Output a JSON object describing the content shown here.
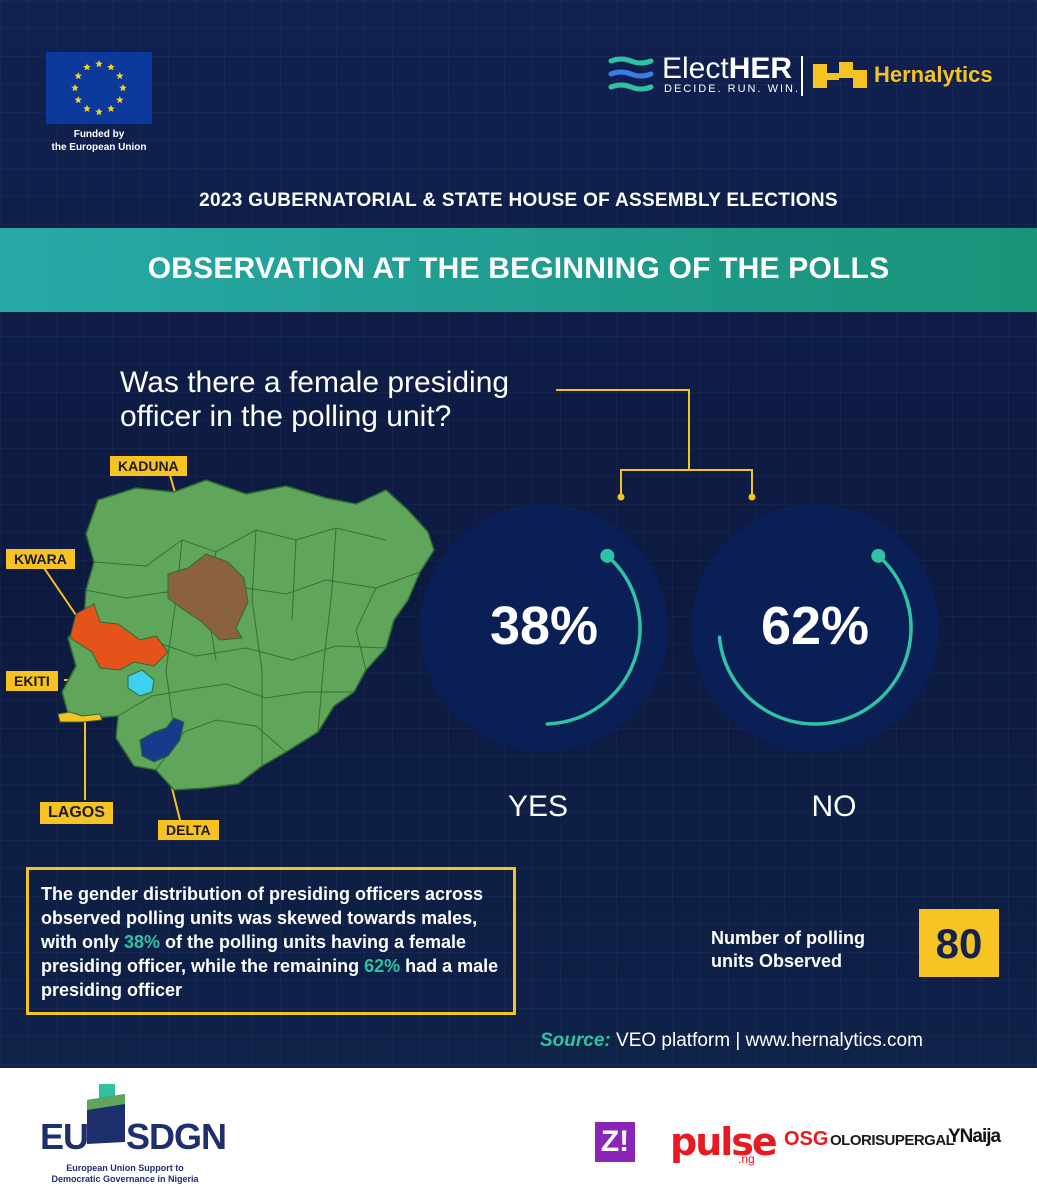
{
  "header": {
    "eu_caption_line1": "Funded by",
    "eu_caption_line2": "the European Union",
    "electher_name_a": "Elect",
    "electher_name_b": "HER",
    "electher_tagline": "DECIDE. RUN. WIN.",
    "hernalytics_name": "Hernalytics"
  },
  "subtitle": "2023 GUBERNATORIAL & STATE HOUSE OF ASSEMBLY ELECTIONS",
  "banner_title": "OBSERVATION AT THE BEGINNING OF THE POLLS",
  "question_line1": "Was there a female presiding",
  "question_line2": "officer in the polling unit?",
  "map": {
    "states": [
      {
        "name": "KADUNA",
        "color": "#8b6240"
      },
      {
        "name": "KWARA",
        "color": "#e5521b"
      },
      {
        "name": "EKITI",
        "color": "#3fd0f0"
      },
      {
        "name": "LAGOS",
        "color": "#f6c322"
      },
      {
        "name": "DELTA",
        "color": "#173a8a"
      }
    ],
    "base_color": "#5fa65a"
  },
  "chart_data": {
    "type": "pie",
    "categories": [
      "YES",
      "NO"
    ],
    "values": [
      38,
      62
    ],
    "value_labels": [
      "38%",
      "62%"
    ],
    "arc_color": "#2dc3a3"
  },
  "description": {
    "part1": "The gender distribution of presiding officers across observed polling units was skewed towards males, with only ",
    "hl1": "38%",
    "part2": " of the polling units having a female presiding officer, while the remaining ",
    "hl2": "62%",
    "part3": " had a male presiding officer"
  },
  "count": {
    "label_line1": "Number of polling",
    "label_line2": "units Observed",
    "value": "80"
  },
  "source": {
    "key": "Source:",
    "text": " VEO platform | www.hernalytics.com"
  },
  "footer": {
    "eusdgn_eu": "EU",
    "eusdgn_sdgn": "SDGN",
    "eusdgn_caption_line1": "European Union Support to",
    "eusdgn_caption_line2": "Democratic Governance in Nigeria",
    "z_logo": "Z!",
    "pulse": "pulse",
    "pulse_ng": ".ng",
    "osg": "OSG",
    "osg_name": "OLORISUPERGAL",
    "ynaija": "YNaija"
  },
  "colors": {
    "background": "#0f1d44",
    "accent_teal": "#2dc3a3",
    "accent_yellow": "#f6c322"
  }
}
